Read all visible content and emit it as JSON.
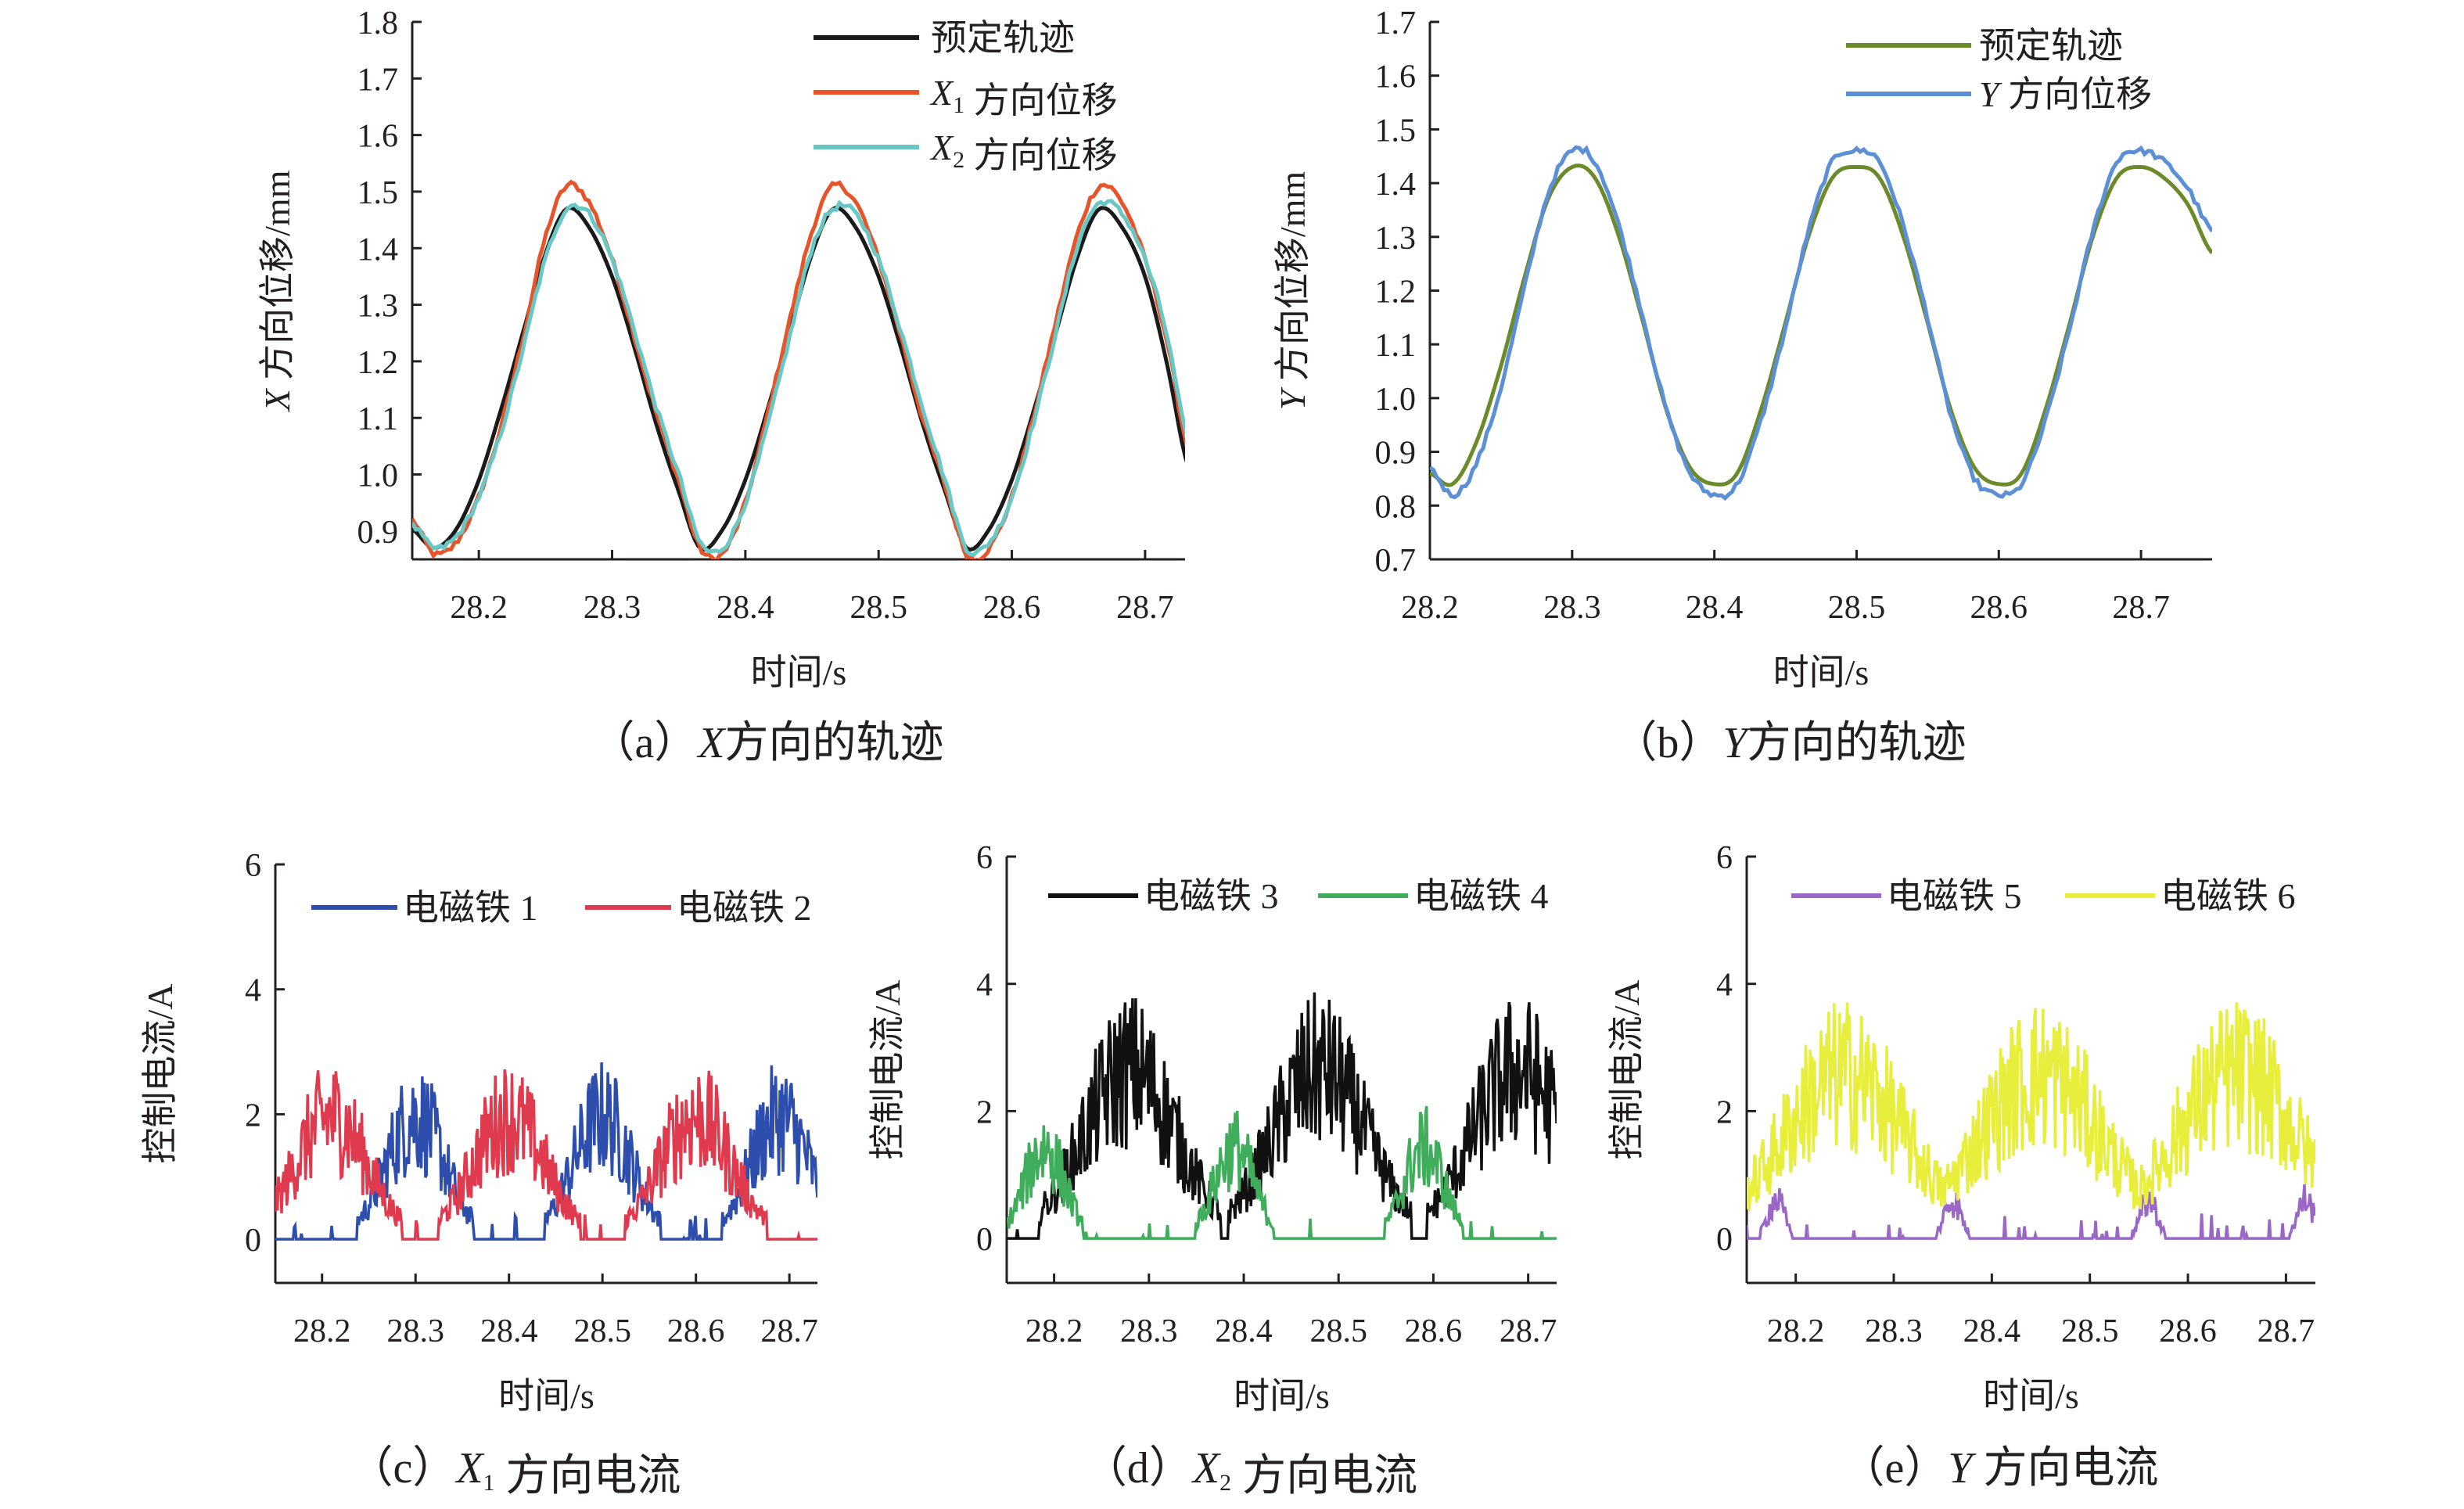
{
  "charts": [
    {
      "id": "a",
      "caption": {
        "prefix": "（a）",
        "var": "X",
        "sub": "",
        "rest": "方向的轨迹"
      },
      "xlabel": "时间/s",
      "ylabel": {
        "var": "X",
        "rest": " 方向位移/mm"
      },
      "xlim": [
        28.15,
        28.73
      ],
      "ylim": [
        0.85,
        1.8
      ],
      "xticks": [
        28.2,
        28.3,
        28.4,
        28.5,
        28.6,
        28.7
      ],
      "xtick_labels": [
        "28.2",
        "28.3",
        "28.4",
        "28.5",
        "28.6",
        "28.7"
      ],
      "yticks": [
        0.9,
        1.0,
        1.1,
        1.2,
        1.3,
        1.4,
        1.5,
        1.6,
        1.7,
        1.8
      ],
      "ytick_labels": [
        "0.9",
        "1.0",
        "1.1",
        "1.2",
        "1.3",
        "1.4",
        "1.5",
        "1.6",
        "1.7",
        "1.8"
      ]
    },
    {
      "id": "b",
      "caption": {
        "prefix": "（b）",
        "var": "Y",
        "sub": "",
        "rest": "方向的轨迹"
      },
      "xlabel": "时间/s",
      "ylabel": {
        "var": "Y",
        "rest": " 方向位移/mm"
      },
      "xlim": [
        28.2,
        28.75
      ],
      "ylim": [
        0.7,
        1.7
      ],
      "xticks": [
        28.2,
        28.3,
        28.4,
        28.5,
        28.6,
        28.7
      ],
      "xtick_labels": [
        "28.2",
        "28.3",
        "28.4",
        "28.5",
        "28.6",
        "28.7"
      ],
      "yticks": [
        0.7,
        0.8,
        0.9,
        1.0,
        1.1,
        1.2,
        1.3,
        1.4,
        1.5,
        1.6,
        1.7
      ],
      "ytick_labels": [
        "0.7",
        "0.8",
        "0.9",
        "1.0",
        "1.1",
        "1.2",
        "1.3",
        "1.4",
        "1.5",
        "1.6",
        "1.7"
      ]
    },
    {
      "id": "c",
      "caption": {
        "prefix": "（c）",
        "var": "X",
        "sub": "1",
        "rest": " 方向电流"
      },
      "xlabel": "时间/s",
      "ylabel": {
        "var": "",
        "rest": "控制电流/A"
      },
      "xlim": [
        28.15,
        28.73
      ],
      "ylim": [
        -0.7,
        6
      ],
      "xticks": [
        28.2,
        28.3,
        28.4,
        28.5,
        28.6,
        28.7
      ],
      "xtick_labels": [
        "28.2",
        "28.3",
        "28.4",
        "28.5",
        "28.6",
        "28.7"
      ],
      "yticks": [
        0,
        2,
        4,
        6
      ],
      "ytick_labels": [
        "0",
        "2",
        "4",
        "6"
      ]
    },
    {
      "id": "d",
      "caption": {
        "prefix": "（d）",
        "var": "X",
        "sub": "2",
        "rest": " 方向电流"
      },
      "xlabel": "时间/s",
      "ylabel": {
        "var": "",
        "rest": "控制电流/A"
      },
      "xlim": [
        28.15,
        28.73
      ],
      "ylim": [
        -0.7,
        6
      ],
      "xticks": [
        28.2,
        28.3,
        28.4,
        28.5,
        28.6,
        28.7
      ],
      "xtick_labels": [
        "28.2",
        "28.3",
        "28.4",
        "28.5",
        "28.6",
        "28.7"
      ],
      "yticks": [
        0,
        2,
        4,
        6
      ],
      "ytick_labels": [
        "0",
        "2",
        "4",
        "6"
      ]
    },
    {
      "id": "e",
      "caption": {
        "prefix": "（e）",
        "var": "Y",
        "sub": "",
        "rest": " 方向电流"
      },
      "xlabel": "时间/s",
      "ylabel": {
        "var": "",
        "rest": "控制电流/A"
      },
      "xlim": [
        28.15,
        28.73
      ],
      "ylim": [
        -0.7,
        6
      ],
      "xticks": [
        28.2,
        28.3,
        28.4,
        28.5,
        28.6,
        28.7
      ],
      "xtick_labels": [
        "28.2",
        "28.3",
        "28.4",
        "28.5",
        "28.6",
        "28.7"
      ],
      "yticks": [
        0,
        2,
        4,
        6
      ],
      "ytick_labels": [
        "0",
        "2",
        "4",
        "6"
      ]
    }
  ],
  "chart_data": [
    {
      "type": "line",
      "series": [
        {
          "label": "预定轨迹",
          "color": "#1a1a1a",
          "x": [
            28.15,
            28.166,
            28.183,
            28.2,
            28.216,
            28.233,
            28.25,
            28.266,
            28.283,
            28.3,
            28.316,
            28.333,
            28.35,
            28.366,
            28.383,
            28.4,
            28.416,
            28.433,
            28.45,
            28.466,
            28.483,
            28.5,
            28.516,
            28.533,
            28.55,
            28.566,
            28.583,
            28.6,
            28.616,
            28.633,
            28.65,
            28.666,
            28.683,
            28.7,
            28.716,
            28.733
          ],
          "y": [
            0.903,
            0.87,
            0.903,
            0.99,
            1.11,
            1.25,
            1.39,
            1.47,
            1.436,
            1.35,
            1.23,
            1.09,
            0.97,
            0.87,
            0.903,
            0.99,
            1.11,
            1.25,
            1.39,
            1.47,
            1.436,
            1.35,
            1.23,
            1.09,
            0.97,
            0.87,
            0.903,
            0.99,
            1.11,
            1.25,
            1.39,
            1.47,
            1.436,
            1.35,
            1.2,
            1.01
          ]
        },
        {
          "label": "X1 方向位移",
          "label_var": "X",
          "label_sub": "1",
          "label_rest": " 方向位移",
          "color": "#e8542a",
          "x": [
            28.15,
            28.166,
            28.183,
            28.2,
            28.216,
            28.233,
            28.25,
            28.266,
            28.283,
            28.3,
            28.316,
            28.333,
            28.35,
            28.366,
            28.383,
            28.4,
            28.416,
            28.433,
            28.45,
            28.466,
            28.483,
            28.5,
            28.516,
            28.533,
            28.55,
            28.566,
            28.583,
            28.6,
            28.616,
            28.633,
            28.65,
            28.666,
            28.683,
            28.7,
            28.716,
            28.733
          ],
          "y": [
            0.92,
            0.86,
            0.88,
            0.96,
            1.08,
            1.24,
            1.42,
            1.51,
            1.48,
            1.38,
            1.25,
            1.11,
            0.99,
            0.87,
            0.86,
            0.95,
            1.1,
            1.27,
            1.43,
            1.51,
            1.48,
            1.38,
            1.25,
            1.1,
            0.98,
            0.86,
            0.87,
            0.96,
            1.1,
            1.27,
            1.43,
            1.51,
            1.48,
            1.38,
            1.24,
            1.04
          ]
        },
        {
          "label": "X2 方向位移",
          "label_var": "X",
          "label_sub": "2",
          "label_rest": " 方向位移",
          "color": "#69c8c6",
          "x": [
            28.15,
            28.166,
            28.183,
            28.2,
            28.216,
            28.233,
            28.25,
            28.266,
            28.283,
            28.3,
            28.316,
            28.333,
            28.35,
            28.366,
            28.383,
            28.4,
            28.416,
            28.433,
            28.45,
            28.466,
            28.483,
            28.5,
            28.516,
            28.533,
            28.55,
            28.566,
            28.583,
            28.6,
            28.616,
            28.633,
            28.65,
            28.666,
            28.683,
            28.7,
            28.716,
            28.733
          ],
          "y": [
            0.91,
            0.87,
            0.89,
            0.96,
            1.07,
            1.22,
            1.38,
            1.47,
            1.46,
            1.38,
            1.26,
            1.12,
            1.0,
            0.88,
            0.87,
            0.95,
            1.08,
            1.24,
            1.4,
            1.47,
            1.46,
            1.38,
            1.26,
            1.12,
            0.99,
            0.87,
            0.88,
            0.96,
            1.09,
            1.25,
            1.41,
            1.48,
            1.46,
            1.38,
            1.25,
            1.05
          ]
        }
      ]
    },
    {
      "type": "line",
      "series": [
        {
          "label": "预定轨迹",
          "color": "#6b8a2a",
          "x": [
            28.2,
            28.216,
            28.233,
            28.25,
            28.266,
            28.283,
            28.3,
            28.316,
            28.333,
            28.35,
            28.366,
            28.383,
            28.4,
            28.416,
            28.433,
            28.45,
            28.466,
            28.483,
            28.5,
            28.516,
            28.533,
            28.55,
            28.566,
            28.583,
            28.6,
            28.616,
            28.633,
            28.65,
            28.666,
            28.683,
            28.7,
            28.716,
            28.733,
            28.75
          ],
          "y": [
            0.86,
            0.84,
            0.92,
            1.06,
            1.22,
            1.37,
            1.43,
            1.41,
            1.3,
            1.14,
            0.98,
            0.87,
            0.84,
            0.86,
            0.98,
            1.14,
            1.3,
            1.41,
            1.43,
            1.41,
            1.3,
            1.14,
            0.98,
            0.87,
            0.84,
            0.86,
            0.98,
            1.14,
            1.3,
            1.41,
            1.43,
            1.41,
            1.36,
            1.27
          ]
        },
        {
          "label": "Y 方向位移",
          "label_var": "Y",
          "label_sub": "",
          "label_rest": " 方向位移",
          "color": "#5b8fd6",
          "x": [
            28.2,
            28.216,
            28.233,
            28.25,
            28.266,
            28.283,
            28.3,
            28.316,
            28.333,
            28.35,
            28.366,
            28.383,
            28.4,
            28.416,
            28.433,
            28.45,
            28.466,
            28.483,
            28.5,
            28.516,
            28.533,
            28.55,
            28.566,
            28.583,
            28.6,
            28.616,
            28.633,
            28.65,
            28.666,
            28.683,
            28.7,
            28.716,
            28.733,
            28.75
          ],
          "y": [
            0.87,
            0.82,
            0.88,
            1.02,
            1.2,
            1.38,
            1.46,
            1.44,
            1.32,
            1.15,
            0.98,
            0.86,
            0.82,
            0.84,
            0.96,
            1.13,
            1.31,
            1.44,
            1.46,
            1.44,
            1.32,
            1.15,
            0.97,
            0.85,
            0.82,
            0.84,
            0.96,
            1.13,
            1.31,
            1.44,
            1.46,
            1.44,
            1.39,
            1.31
          ]
        }
      ]
    },
    {
      "type": "line",
      "series": [
        {
          "label": "电磁铁 1",
          "color": "#2e4eae",
          "max": 2.9,
          "peaks": [
            28.3,
            28.5,
            28.69
          ],
          "width": 0.045
        },
        {
          "label": "电磁铁 2",
          "color": "#e03a4e",
          "max": 2.9,
          "peaks": [
            28.21,
            28.4,
            28.6
          ],
          "width": 0.055
        }
      ]
    },
    {
      "type": "line",
      "series": [
        {
          "label": "电磁铁 3",
          "color": "#111111",
          "max": 3.9,
          "peaks": [
            28.28,
            28.48,
            28.69
          ],
          "width": 0.07
        },
        {
          "label": "电磁铁 4",
          "color": "#3fad5b",
          "max": 2.1,
          "peaks": [
            28.19,
            28.39,
            28.59
          ],
          "width": 0.03
        }
      ]
    },
    {
      "type": "line",
      "series": [
        {
          "label": "电磁铁 5",
          "color": "#9b67c6",
          "max": 0.9,
          "peaks": [
            28.18,
            28.36,
            28.56,
            28.72
          ],
          "width": 0.012
        },
        {
          "label": "电磁铁 6",
          "color": "#e8ee3c",
          "max": 3.8,
          "peaks": [
            28.25,
            28.45,
            28.65
          ],
          "width": 0.09
        }
      ]
    }
  ]
}
